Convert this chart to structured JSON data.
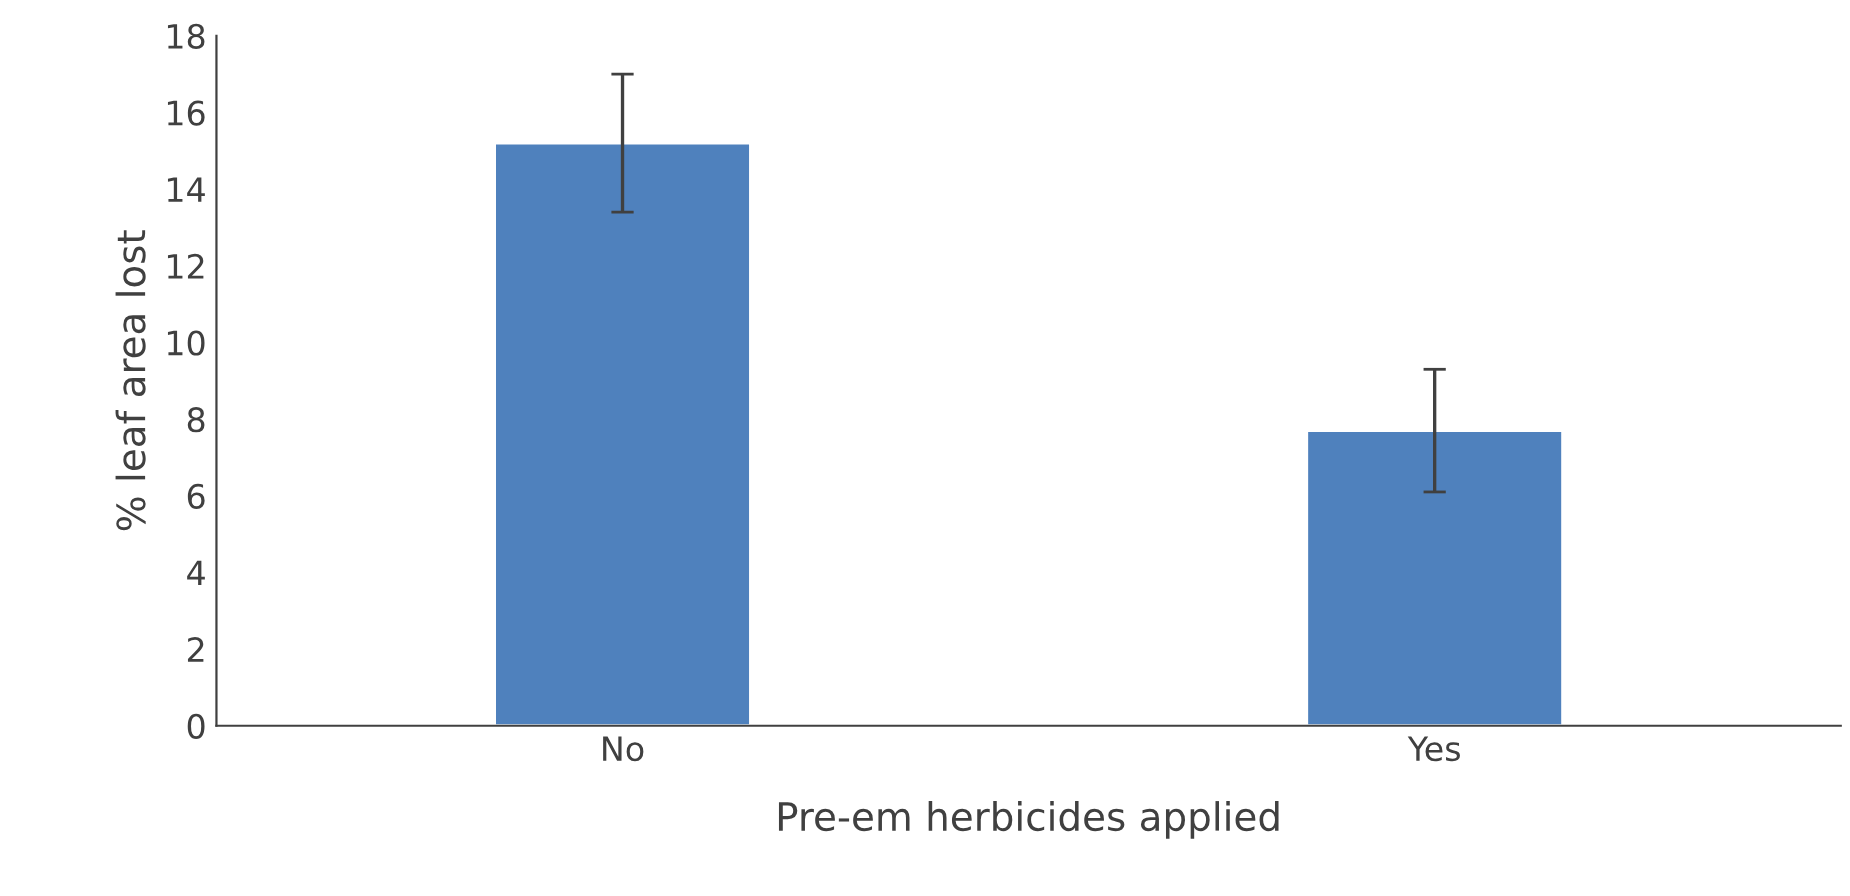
{
  "chart_data": {
    "type": "bar",
    "xlabel": "Pre-em herbicides applied",
    "ylabel": "% leaf area lost",
    "categories": [
      "No",
      "Yes"
    ],
    "values": [
      15.2,
      7.7
    ],
    "errors": [
      1.8,
      1.6
    ],
    "color": "#4f81bd",
    "ylim": [
      0,
      18
    ],
    "yticks": [
      0,
      2,
      4,
      6,
      8,
      10,
      12,
      14,
      16,
      18
    ],
    "grid": false
  }
}
